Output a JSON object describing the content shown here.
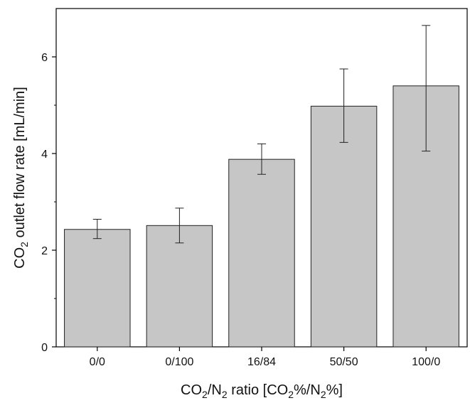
{
  "chart_data": {
    "type": "bar",
    "title": "",
    "categories": [
      "0/0",
      "0/100",
      "16/84",
      "50/50",
      "100/0"
    ],
    "values": [
      2.43,
      2.51,
      3.88,
      4.98,
      5.4
    ],
    "error_low": [
      2.24,
      2.15,
      3.57,
      4.23,
      4.05
    ],
    "error_high": [
      2.64,
      2.87,
      4.2,
      5.75,
      6.65
    ],
    "xlabel": {
      "base1": "CO",
      "sub1": "2",
      "mid": "/N",
      "sub2": "2",
      "rest1": " ratio [CO",
      "sub3": "2",
      "rest2": "%/N",
      "sub4": "2",
      "rest3": "%]"
    },
    "ylabel": {
      "base": "CO",
      "sub": "2",
      "rest": " outlet flow rate [mL/min]"
    },
    "ylim": [
      0,
      7
    ],
    "yticks": [
      "0",
      "2",
      "4",
      "6"
    ],
    "grid": false,
    "legend": "none",
    "colors": {
      "bar_fill": "#c6c6c6",
      "bar_stroke": "#222222",
      "axis": "#000000",
      "error": "#222222"
    }
  }
}
